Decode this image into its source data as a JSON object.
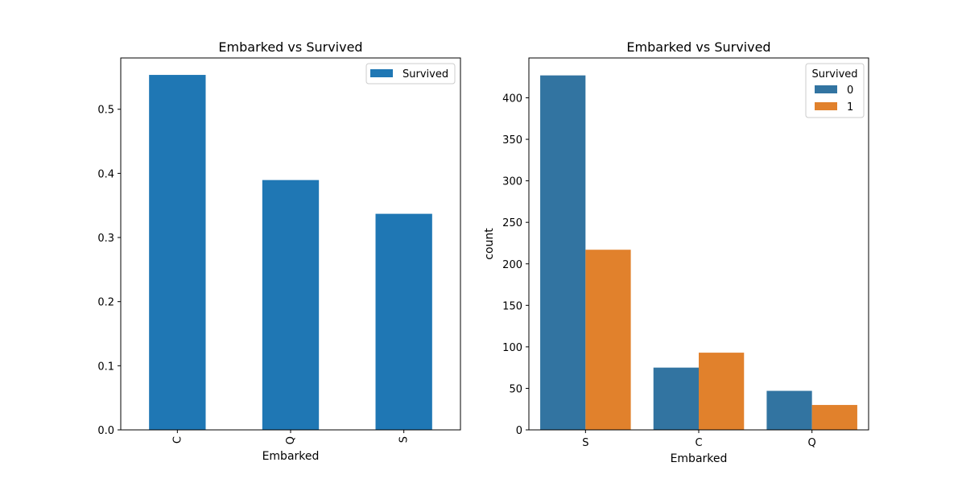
{
  "chart_data": [
    {
      "type": "bar",
      "title": "Embarked vs Survived",
      "xlabel": "Embarked",
      "ylabel": "",
      "categories": [
        "C",
        "Q",
        "S"
      ],
      "series": [
        {
          "name": "Survived",
          "values": [
            0.553571,
            0.38961,
            0.336957
          ],
          "color": "#1f77b4"
        }
      ],
      "ylim": [
        0,
        0.58
      ],
      "yticks": [
        "0.0",
        "0.1",
        "0.2",
        "0.3",
        "0.4",
        "0.5"
      ],
      "ytick_values": [
        0,
        0.1,
        0.2,
        0.3,
        0.4,
        0.5
      ],
      "xtick_rotation": "vertical",
      "legend": {
        "placement": "upper right"
      },
      "grid": false
    },
    {
      "type": "bar",
      "title": "Embarked vs Survived",
      "xlabel": "Embarked",
      "ylabel": "count",
      "categories": [
        "S",
        "C",
        "Q"
      ],
      "legend": {
        "title": "Survived",
        "placement": "upper right"
      },
      "series": [
        {
          "name": "0",
          "values": [
            427,
            75,
            47
          ],
          "color": "#3274a1"
        },
        {
          "name": "1",
          "values": [
            217,
            93,
            30
          ],
          "color": "#e1812c"
        }
      ],
      "ylim": [
        0,
        448
      ],
      "yticks": [
        "0",
        "50",
        "100",
        "150",
        "200",
        "250",
        "300",
        "350",
        "400"
      ],
      "ytick_values": [
        0,
        50,
        100,
        150,
        200,
        250,
        300,
        350,
        400
      ],
      "grid": false
    }
  ]
}
